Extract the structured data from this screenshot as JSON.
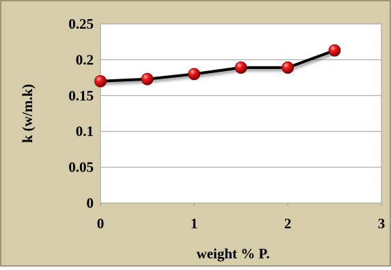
{
  "chart_data": {
    "type": "line",
    "xlabel": "weight % P.",
    "ylabel": "k (w/m.k)",
    "xlim": [
      0,
      3
    ],
    "ylim": [
      0,
      0.25
    ],
    "x_ticks": [
      "0",
      "1",
      "2",
      "3"
    ],
    "y_ticks": [
      "0",
      "0.05",
      "0.1",
      "0.15",
      "0.2",
      "0.25"
    ],
    "grid": "horizontal",
    "legend": "none",
    "series": [
      {
        "x": [
          0,
          0.5,
          1,
          1.5,
          2,
          2.5
        ],
        "y": [
          0.17,
          0.173,
          0.18,
          0.189,
          0.189,
          0.213
        ]
      }
    ],
    "colors": {
      "background": "#d6ceaa",
      "plot_area": "#ffffff",
      "gridline": "#9f9f9f",
      "line": "#000000",
      "marker": "#d10000"
    }
  }
}
